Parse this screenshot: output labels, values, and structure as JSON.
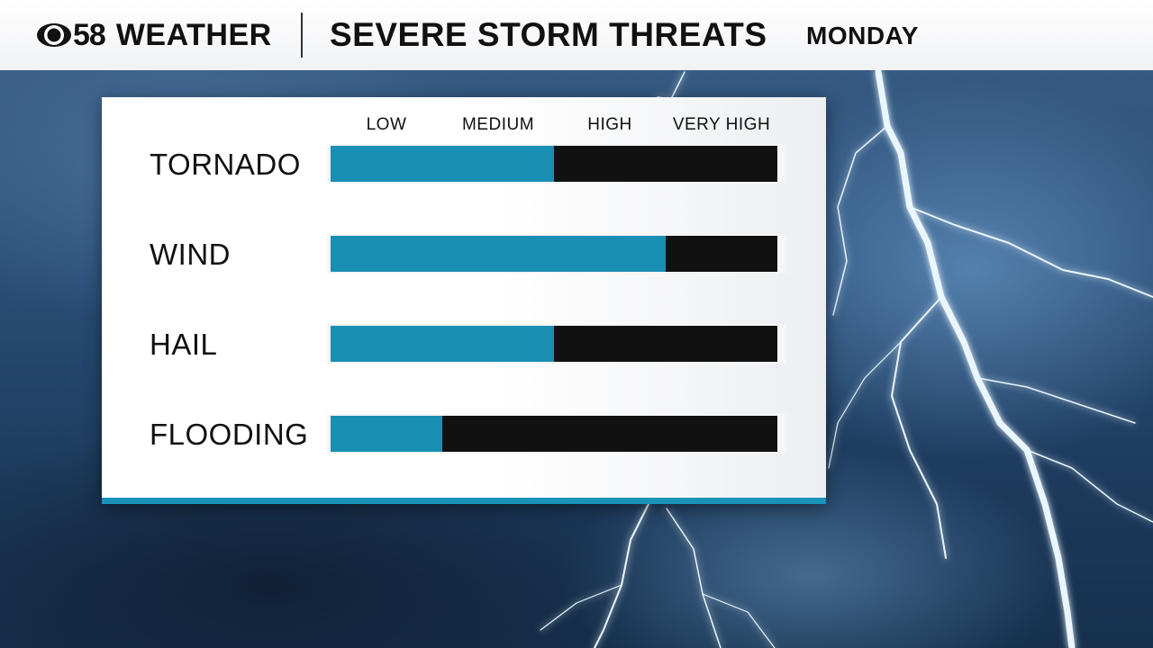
{
  "header": {
    "logo_number": "58",
    "logo_word": "WEATHER",
    "title": "SEVERE STORM THREATS",
    "day": "MONDAY"
  },
  "colors": {
    "fill": "#1a8fb4",
    "track": "#111111",
    "accent_stripe": "#1a93b8"
  },
  "chart_data": {
    "type": "bar",
    "orientation": "horizontal",
    "scale_labels": [
      "LOW",
      "MEDIUM",
      "HIGH",
      "VERY HIGH"
    ],
    "scale_max": 4,
    "categories": [
      "TORNADO",
      "WIND",
      "HAIL",
      "FLOODING"
    ],
    "values": [
      2,
      3,
      2,
      1
    ]
  }
}
